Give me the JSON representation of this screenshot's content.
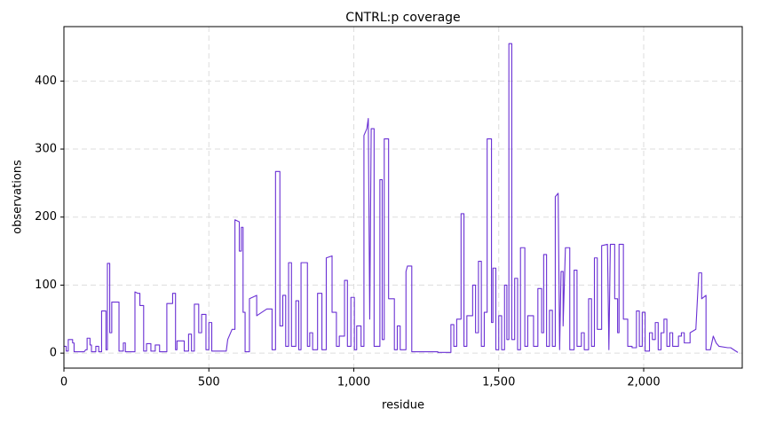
{
  "chart_data": {
    "type": "line",
    "title": "CNTRL:p coverage",
    "x_label": "residue",
    "y_label": "observations",
    "xlim": [
      0,
      2340
    ],
    "ylim": [
      -22,
      480
    ],
    "xticks": [
      0,
      500,
      {
        "value": 1000,
        "label": "1,000"
      },
      {
        "value": 1500,
        "label": "1,500"
      },
      {
        "value": 2000,
        "label": "2,000"
      }
    ],
    "yticks": [
      0,
      100,
      200,
      300,
      400
    ],
    "grid": true,
    "series": [
      {
        "color": "#6a30d4",
        "x": [
          0,
          8,
          8,
          15,
          15,
          30,
          30,
          35,
          35,
          70,
          75,
          80,
          80,
          90,
          90,
          95,
          95,
          110,
          110,
          120,
          120,
          130,
          130,
          145,
          145,
          150,
          150,
          158,
          158,
          165,
          165,
          190,
          190,
          205,
          205,
          212,
          212,
          245,
          245,
          255,
          262,
          262,
          275,
          275,
          285,
          285,
          300,
          300,
          315,
          315,
          330,
          330,
          355,
          355,
          375,
          375,
          385,
          385,
          390,
          390,
          415,
          415,
          430,
          430,
          440,
          440,
          450,
          450,
          465,
          465,
          475,
          475,
          490,
          490,
          500,
          500,
          510,
          510,
          560,
          565,
          580,
          590,
          590,
          605,
          605,
          612,
          612,
          618,
          618,
          625,
          625,
          640,
          640,
          665,
          665,
          700,
          718,
          718,
          730,
          730,
          745,
          745,
          755,
          755,
          765,
          765,
          775,
          775,
          785,
          785,
          800,
          800,
          810,
          810,
          818,
          818,
          840,
          840,
          848,
          848,
          858,
          858,
          875,
          875,
          890,
          890,
          905,
          905,
          925,
          925,
          940,
          940,
          950,
          950,
          968,
          968,
          978,
          978,
          990,
          990,
          1002,
          1002,
          1010,
          1010,
          1025,
          1025,
          1035,
          1035,
          1045,
          1050,
          1055,
          1060,
          1070,
          1070,
          1090,
          1090,
          1098,
          1098,
          1105,
          1105,
          1120,
          1120,
          1140,
          1140,
          1150,
          1150,
          1160,
          1160,
          1180,
          1180,
          1185,
          1200,
          1200,
          1270,
          1290,
          1290,
          1335,
          1335,
          1345,
          1345,
          1355,
          1355,
          1370,
          1370,
          1380,
          1380,
          1390,
          1390,
          1410,
          1410,
          1420,
          1420,
          1430,
          1430,
          1440,
          1440,
          1450,
          1450,
          1460,
          1460,
          1475,
          1475,
          1480,
          1480,
          1490,
          1490,
          1500,
          1500,
          1510,
          1510,
          1520,
          1520,
          1528,
          1528,
          1535,
          1535,
          1545,
          1545,
          1555,
          1555,
          1565,
          1565,
          1575,
          1575,
          1590,
          1590,
          1600,
          1600,
          1620,
          1620,
          1635,
          1635,
          1648,
          1648,
          1655,
          1655,
          1665,
          1665,
          1675,
          1675,
          1685,
          1685,
          1695,
          1695,
          1705,
          1710,
          1715,
          1722,
          1722,
          1730,
          1745,
          1745,
          1760,
          1760,
          1770,
          1770,
          1785,
          1785,
          1795,
          1795,
          1810,
          1810,
          1820,
          1820,
          1830,
          1830,
          1840,
          1840,
          1855,
          1855,
          1875,
          1880,
          1885,
          1900,
          1900,
          1910,
          1910,
          1915,
          1915,
          1930,
          1930,
          1945,
          1945,
          1960,
          1960,
          1975,
          1975,
          1985,
          1985,
          1995,
          1995,
          2005,
          2005,
          2020,
          2020,
          2030,
          2030,
          2040,
          2040,
          2050,
          2050,
          2060,
          2060,
          2070,
          2070,
          2080,
          2080,
          2090,
          2090,
          2100,
          2100,
          2120,
          2120,
          2130,
          2130,
          2140,
          2140,
          2160,
          2160,
          2180,
          2190,
          2200,
          2200,
          2215,
          2215,
          2230,
          2240,
          2250,
          2260,
          2290,
          2300,
          2325
        ],
        "values": [
          10,
          10,
          3,
          3,
          20,
          20,
          15,
          15,
          2,
          2,
          5,
          5,
          22,
          22,
          12,
          12,
          2,
          2,
          10,
          10,
          2,
          2,
          62,
          62,
          5,
          5,
          132,
          132,
          30,
          30,
          75,
          75,
          3,
          3,
          15,
          15,
          2,
          2,
          90,
          88,
          88,
          70,
          70,
          3,
          3,
          14,
          14,
          3,
          3,
          12,
          12,
          2,
          2,
          73,
          73,
          88,
          88,
          5,
          5,
          18,
          18,
          3,
          3,
          28,
          28,
          3,
          3,
          72,
          72,
          30,
          30,
          57,
          57,
          5,
          5,
          45,
          45,
          3,
          3,
          20,
          35,
          35,
          196,
          193,
          150,
          150,
          185,
          185,
          60,
          60,
          2,
          2,
          80,
          85,
          55,
          65,
          65,
          5,
          5,
          267,
          267,
          40,
          40,
          85,
          85,
          10,
          10,
          133,
          133,
          10,
          10,
          77,
          77,
          5,
          5,
          133,
          133,
          10,
          10,
          30,
          30,
          5,
          5,
          88,
          88,
          5,
          5,
          140,
          143,
          60,
          60,
          10,
          10,
          25,
          25,
          107,
          107,
          10,
          10,
          82,
          82,
          5,
          5,
          40,
          40,
          10,
          10,
          320,
          330,
          345,
          50,
          330,
          330,
          10,
          10,
          255,
          255,
          20,
          20,
          315,
          315,
          80,
          80,
          5,
          5,
          40,
          40,
          5,
          5,
          120,
          128,
          128,
          2,
          2,
          2,
          1,
          1,
          42,
          42,
          10,
          10,
          50,
          50,
          205,
          205,
          10,
          10,
          55,
          55,
          100,
          100,
          30,
          30,
          135,
          135,
          10,
          10,
          60,
          60,
          315,
          315,
          45,
          45,
          125,
          125,
          5,
          5,
          55,
          55,
          5,
          5,
          100,
          100,
          20,
          20,
          455,
          455,
          20,
          20,
          110,
          110,
          5,
          5,
          155,
          155,
          10,
          10,
          55,
          55,
          10,
          10,
          95,
          95,
          30,
          30,
          145,
          145,
          10,
          10,
          63,
          63,
          10,
          10,
          230,
          235,
          5,
          120,
          120,
          40,
          155,
          155,
          5,
          5,
          122,
          122,
          10,
          10,
          30,
          30,
          5,
          5,
          80,
          80,
          10,
          10,
          140,
          140,
          35,
          35,
          158,
          160,
          5,
          160,
          160,
          80,
          80,
          30,
          30,
          160,
          160,
          50,
          50,
          10,
          10,
          8,
          8,
          62,
          62,
          10,
          10,
          60,
          60,
          3,
          3,
          30,
          30,
          20,
          20,
          45,
          45,
          5,
          5,
          30,
          30,
          50,
          50,
          10,
          10,
          30,
          30,
          10,
          10,
          25,
          25,
          30,
          30,
          15,
          15,
          30,
          35,
          118,
          118,
          80,
          85,
          5,
          5,
          25,
          15,
          10,
          8,
          8,
          1
        ]
      }
    ]
  }
}
